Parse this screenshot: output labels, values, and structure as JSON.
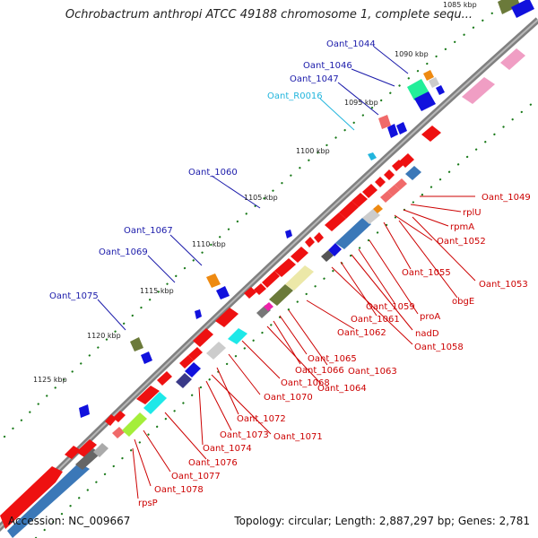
{
  "title": "Ochrobactrum anthropi ATCC 49188 chromosome 1, complete sequ...",
  "footer": {
    "accession": "Accession: NC_009667",
    "summary": "Topology: circular; Length: 2,887,297 bp; Genes: 2,781"
  },
  "colors": {
    "backbone": "#888888",
    "forward_label": "#1a1aaa",
    "reverse_label": "#cc0000",
    "rna_label": "#22b5dd",
    "gc_skew": "#1a7a1a"
  },
  "kbp_ticks": [
    "1085 kbp",
    "1090 kbp",
    "1095 kbp",
    "1100 kbp",
    "1105 kbp",
    "1110 kbp",
    "1115 kbp",
    "1120 kbp",
    "1125 kbp"
  ],
  "forward_labels": [
    "Oant_1044",
    "Oant_1046",
    "Oant_1047",
    "Oant_R0016",
    "Oant_1060",
    "Oant_1067",
    "Oant_1069",
    "Oant_1075"
  ],
  "reverse_labels": [
    "Oant_1049",
    "rplU",
    "rpmA",
    "Oant_1052",
    "Oant_1053",
    "obgE",
    "Oant_1055",
    "proA",
    "Oant_1059",
    "nadD",
    "Oant_1061",
    "Oant_1058",
    "Oant_1062",
    "Oant_1063",
    "Oant_1065",
    "Oant_1066",
    "Oant_1064",
    "Oant_1068",
    "Oant_1070",
    "Oant_1072",
    "Oant_1071",
    "Oant_1073",
    "Oant_1074",
    "Oant_1076",
    "Oant_1077",
    "Oant_1078",
    "rpsP"
  ]
}
